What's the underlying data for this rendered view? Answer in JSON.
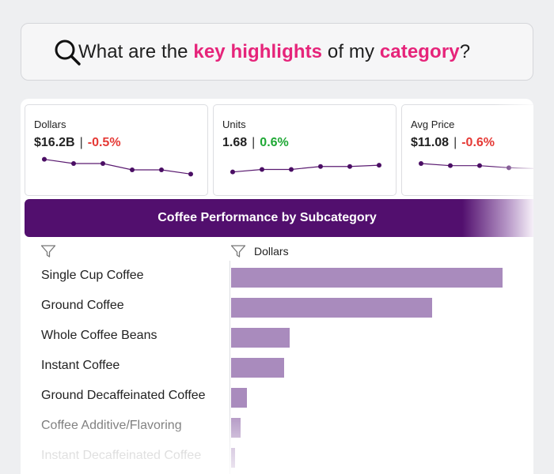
{
  "search": {
    "parts": [
      {
        "text": "What are the ",
        "highlight": false
      },
      {
        "text": "key highlights",
        "highlight": true
      },
      {
        "text": " of my ",
        "highlight": false
      },
      {
        "text": "category",
        "highlight": true
      },
      {
        "text": "?",
        "highlight": false
      }
    ],
    "icon": "search-icon"
  },
  "kpis": [
    {
      "label": "Dollars",
      "value": "$16.2B",
      "sep": "|",
      "change": "-0.5%",
      "direction": "neg",
      "trend": [
        4,
        3,
        3,
        1.5,
        1.5,
        0.5
      ]
    },
    {
      "label": "Units",
      "value": "1.68",
      "sep": "|",
      "change": "0.6%",
      "direction": "pos",
      "trend": [
        1,
        1.6,
        1.6,
        2.3,
        2.3,
        2.6
      ]
    },
    {
      "label": "Avg Price",
      "value": "$11.08",
      "sep": "|",
      "change": "-0.6%",
      "direction": "neg",
      "trend": [
        3,
        2.5,
        2.5,
        2,
        1.8
      ]
    }
  ],
  "chart_title": "Coffee Performance by Subcategory",
  "table": {
    "category_filter_icon": "filter-icon",
    "metric_header": "Dollars",
    "colors": {
      "bar": "#a98bbd",
      "band": "#520f6e"
    }
  },
  "chart_data": {
    "type": "bar",
    "orientation": "horizontal",
    "title": "Coffee Performance by Subcategory",
    "xlabel": "Dollars",
    "categories": [
      "Single Cup Coffee",
      "Ground Coffee",
      "Whole Coffee Beans",
      "Instant Coffee",
      "Ground Decaffeinated Coffee",
      "Coffee Additive/Flavoring",
      "Instant Decaffeinated Coffee"
    ],
    "values": [
      100,
      74,
      21.5,
      19.5,
      5.8,
      3.5,
      1.6
    ],
    "unit": "relative share of Dollars (max = 100)"
  }
}
